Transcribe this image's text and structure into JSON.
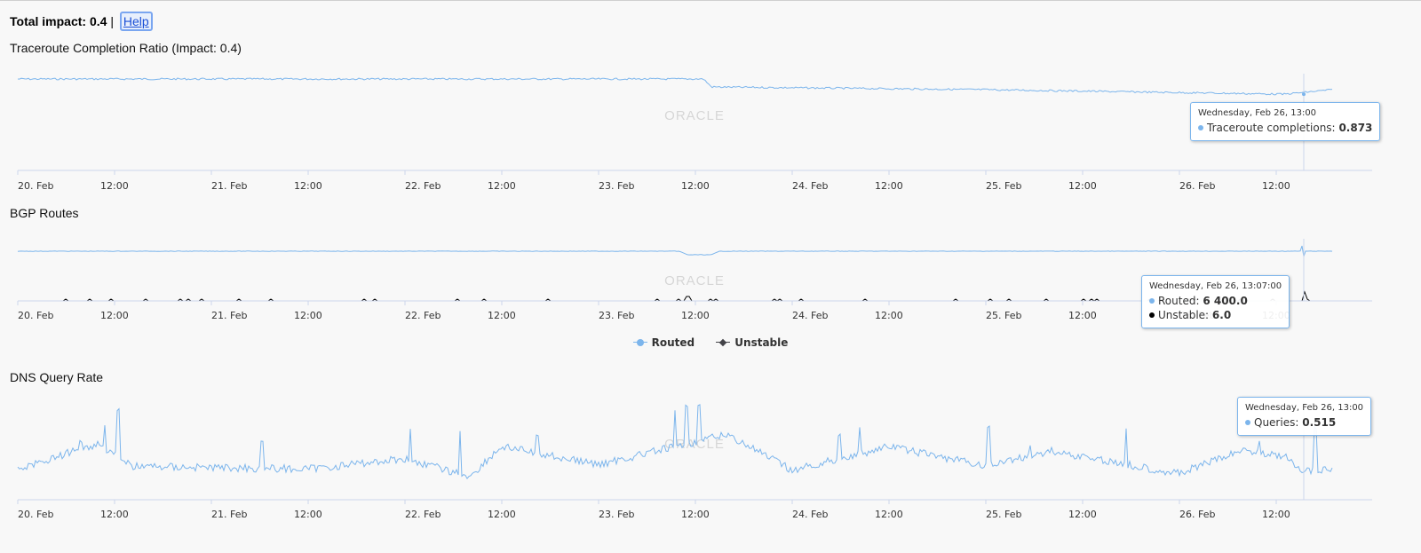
{
  "header": {
    "total_impact_label": "Total impact:",
    "total_impact_value": "0.4",
    "separator": "|",
    "help_link": "Help"
  },
  "watermark": "ORACLE",
  "x_tick_labels": [
    "20. Feb",
    "12:00",
    "21. Feb",
    "12:00",
    "22. Feb",
    "12:00",
    "23. Feb",
    "12:00",
    "24. Feb",
    "12:00",
    "25. Feb",
    "12:00",
    "26. Feb",
    "12:00"
  ],
  "colors": {
    "series_blue": "#7cb5ec",
    "series_black": "#434348"
  },
  "charts": [
    {
      "title": "Traceroute Completion Ratio (Impact: 0.4)",
      "tooltip": {
        "date": "Wednesday, Feb 26, 13:00",
        "rows": [
          {
            "label": "Traceroute completions:",
            "value": "0.873",
            "color": "#7cb5ec"
          }
        ]
      }
    },
    {
      "title": "BGP Routes",
      "tooltip": {
        "date": "Wednesday, Feb 26, 13:07:00",
        "rows": [
          {
            "label": "Routed:",
            "value": "6 400.0",
            "color": "#7cb5ec"
          },
          {
            "label": "Unstable:",
            "value": "6.0",
            "color": "#000000"
          }
        ]
      },
      "legend": [
        {
          "name": "Routed",
          "color": "#7cb5ec",
          "symbol": "circle"
        },
        {
          "name": "Unstable",
          "color": "#434348",
          "symbol": "diamond"
        }
      ]
    },
    {
      "title": "DNS Query Rate",
      "tooltip": {
        "date": "Wednesday, Feb 26, 13:00",
        "rows": [
          {
            "label": "Queries:",
            "value": "0.515",
            "color": "#7cb5ec"
          }
        ]
      }
    }
  ],
  "chart_data": [
    {
      "type": "line",
      "title": "Traceroute Completion Ratio (Impact: 0.4)",
      "x_range": [
        "Feb 20 00:00",
        "Feb 26 19:00"
      ],
      "series": [
        {
          "name": "Traceroute completions",
          "points": [
            [
              "Feb 20 00:00",
              0.93
            ],
            [
              "Feb 21 12:00",
              0.93
            ],
            [
              "Feb 23 13:00",
              0.93
            ],
            [
              "Feb 23 14:00",
              0.9
            ],
            [
              "Feb 25 00:00",
              0.89
            ],
            [
              "Feb 26 13:00",
              0.873
            ],
            [
              "Feb 26 19:00",
              0.89
            ]
          ]
        }
      ]
    },
    {
      "type": "line",
      "title": "BGP Routes",
      "x_range": [
        "Feb 20 00:00",
        "Feb 26 19:00"
      ],
      "series": [
        {
          "name": "Routed",
          "points": [
            [
              "Feb 20 00:00",
              6400
            ],
            [
              "Feb 23 10:00",
              6400
            ],
            [
              "Feb 23 11:00",
              6360
            ],
            [
              "Feb 23 14:00",
              6360
            ],
            [
              "Feb 23 15:00",
              6400
            ],
            [
              "Feb 26 13:07",
              6400
            ],
            [
              "Feb 26 19:00",
              6400
            ]
          ]
        },
        {
          "name": "Unstable",
          "points": [
            [
              "Feb 20 00:00",
              0
            ],
            [
              "Feb 23 10:00",
              0
            ],
            [
              "Feb 23 11:00",
              4
            ],
            [
              "Feb 26 13:07",
              6.0
            ],
            [
              "Feb 26 19:00",
              0
            ]
          ]
        }
      ]
    },
    {
      "type": "line",
      "title": "DNS Query Rate",
      "x_range": [
        "Feb 20 00:00",
        "Feb 26 19:00"
      ],
      "series": [
        {
          "name": "Queries",
          "points": [
            [
              "Feb 20 00:00",
              0.43
            ],
            [
              "Feb 20 10:00",
              0.6
            ],
            [
              "Feb 20 14:00",
              0.45
            ],
            [
              "Feb 21 12:00",
              0.43
            ],
            [
              "Feb 22 00:00",
              0.5
            ],
            [
              "Feb 22 08:00",
              0.38
            ],
            [
              "Feb 22 12:00",
              0.58
            ],
            [
              "Feb 23 00:00",
              0.46
            ],
            [
              "Feb 23 16:00",
              0.66
            ],
            [
              "Feb 24 00:00",
              0.42
            ],
            [
              "Feb 24 12:00",
              0.58
            ],
            [
              "Feb 25 00:00",
              0.45
            ],
            [
              "Feb 25 08:00",
              0.55
            ],
            [
              "Feb 26 00:00",
              0.4
            ],
            [
              "Feb 26 08:00",
              0.56
            ],
            [
              "Feb 26 13:00",
              0.515
            ],
            [
              "Feb 26 15:00",
              0.42
            ],
            [
              "Feb 26 19:00",
              0.42
            ]
          ]
        }
      ]
    }
  ]
}
